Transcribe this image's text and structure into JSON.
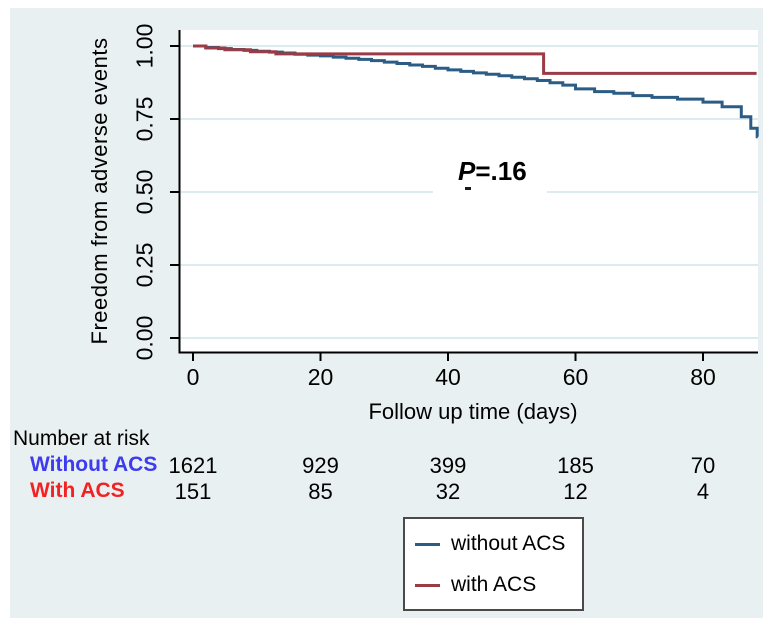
{
  "figure": {
    "canvas_color": "#e9f0f2",
    "plot_background": "#ffffff",
    "grid_color": "#dcebee",
    "axis_color": "#000000"
  },
  "chart_data": {
    "type": "line",
    "subtype": "kaplan_meier_step",
    "title": "",
    "xlabel": "Follow up time (days)",
    "ylabel": "Freedom from adverse events",
    "xlim": [
      0,
      89
    ],
    "ylim": [
      0.0,
      1.0
    ],
    "xticks": [
      0,
      20,
      40,
      60,
      80
    ],
    "yticks": [
      0.0,
      0.25,
      0.5,
      0.75,
      1.0
    ],
    "ytick_labels": [
      "0.00",
      "0.25",
      "0.50",
      "0.75",
      "1.00"
    ],
    "grid": "horizontal",
    "legend_position": "bottom-right-outside",
    "annotation": {
      "text": "P=.16",
      "italic_part": "P",
      "rest": "=.16"
    },
    "series": [
      {
        "name": "without ACS",
        "color": "#2b5c85",
        "x": [
          0,
          2,
          4,
          6,
          8,
          10,
          12,
          14,
          16,
          18,
          20,
          22,
          24,
          26,
          28,
          30,
          32,
          34,
          36,
          38,
          40,
          42,
          44,
          46,
          48,
          50,
          52,
          54,
          56,
          58,
          60,
          63,
          66,
          69,
          72,
          76,
          80,
          83,
          86,
          87.5,
          88.5
        ],
        "y": [
          1.0,
          0.995,
          0.991,
          0.988,
          0.985,
          0.982,
          0.979,
          0.976,
          0.972,
          0.969,
          0.966,
          0.962,
          0.958,
          0.954,
          0.95,
          0.945,
          0.94,
          0.935,
          0.93,
          0.924,
          0.918,
          0.913,
          0.908,
          0.903,
          0.898,
          0.893,
          0.888,
          0.882,
          0.874,
          0.866,
          0.853,
          0.844,
          0.838,
          0.83,
          0.824,
          0.818,
          0.808,
          0.792,
          0.758,
          0.718,
          0.689
        ],
        "x_end": 88.6
      },
      {
        "name": "with ACS",
        "color": "#9a3b45",
        "x": [
          0,
          2,
          5,
          9,
          13,
          55
        ],
        "y": [
          1.0,
          0.993,
          0.987,
          0.98,
          0.973,
          0.906
        ],
        "x_end": 88.4
      }
    ]
  },
  "risk_table": {
    "title": "Number at risk",
    "timepoints": [
      0,
      20,
      40,
      60,
      80
    ],
    "rows": [
      {
        "label": "Without ACS",
        "label_color": "#3c3cee",
        "values": [
          "1621",
          "929",
          "399",
          "185",
          "70"
        ]
      },
      {
        "label": "With ACS",
        "label_color": "#f32222",
        "values": [
          "151",
          "85",
          "32",
          "12",
          "4"
        ]
      }
    ]
  },
  "legend": {
    "entries": [
      {
        "label": "without ACS",
        "color": "#2b5c85"
      },
      {
        "label": "with ACS",
        "color": "#9a3b45"
      }
    ]
  }
}
